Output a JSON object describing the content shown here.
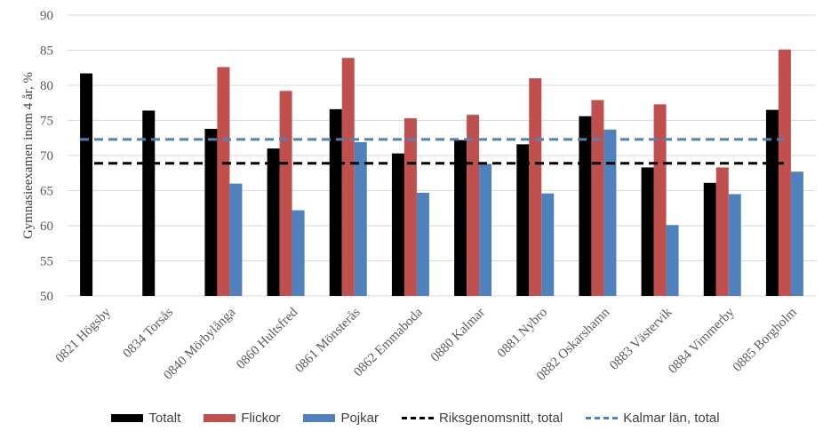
{
  "chart_data": {
    "type": "bar",
    "title": "",
    "xlabel": "",
    "ylabel": "Gymnasieexamen inom 4 år, %",
    "ylim": [
      50,
      90
    ],
    "yticks": [
      50,
      55,
      60,
      65,
      70,
      75,
      80,
      85,
      90
    ],
    "grid": true,
    "legend_position": "bottom",
    "categories": [
      "0821 Högsby",
      "0834 Torsås",
      "0840 Mörbylånga",
      "0860 Hultsfred",
      "0861 Mönsterås",
      "0862 Emmaboda",
      "0880 Kalmar",
      "0881 Nybro",
      "0882 Oskarshamn",
      "0883 Västervik",
      "0884 Vimmerby",
      "0885 Borgholm"
    ],
    "series": [
      {
        "name": "Totalt",
        "color": "#000000",
        "values": [
          81.7,
          76.4,
          73.8,
          71.0,
          76.6,
          70.3,
          72.2,
          71.6,
          75.6,
          68.3,
          66.1,
          76.5
        ]
      },
      {
        "name": "Flickor",
        "color": "#c0504d",
        "values": [
          null,
          null,
          82.6,
          79.2,
          83.9,
          75.3,
          75.8,
          81.0,
          77.9,
          77.3,
          68.3,
          85.1
        ]
      },
      {
        "name": "Pojkar",
        "color": "#4f81bd",
        "values": [
          null,
          null,
          66.0,
          62.2,
          71.9,
          64.7,
          68.8,
          64.6,
          73.7,
          60.1,
          64.5,
          67.7
        ]
      }
    ],
    "reference_lines": [
      {
        "name": "Riksgenomsnitt, total",
        "color": "#000000",
        "value": 68.9
      },
      {
        "name": "Kalmar län, total",
        "color": "#4f81bd",
        "value": 72.3
      }
    ]
  }
}
